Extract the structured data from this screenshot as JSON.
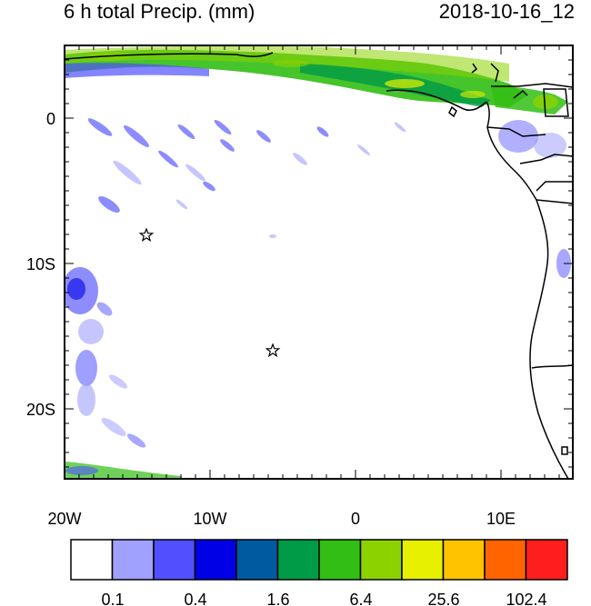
{
  "header": {
    "title": "6 h total Precip. (mm)",
    "datetime": "2018-10-16_12"
  },
  "map": {
    "lat_labels": [
      "0",
      "10S",
      "20S"
    ],
    "lon_labels": [
      "20W",
      "10W",
      "0",
      "10E"
    ],
    "markers": [
      {
        "name": "star-marker-1",
        "lon": -14.4,
        "lat": -8.1
      },
      {
        "name": "star-marker-2",
        "lon": -5.8,
        "lat": -16.0
      }
    ]
  },
  "colorbar": {
    "colors": [
      "#ffffff",
      "#a0a0ff",
      "#5050ff",
      "#0000e6",
      "#005aa0",
      "#009b46",
      "#32be14",
      "#8cd200",
      "#e6f000",
      "#ffc300",
      "#ff6400",
      "#ff1e1e"
    ],
    "labels": [
      "0.1",
      "0.4",
      "1.6",
      "6.4",
      "25.6",
      "102.4"
    ]
  }
}
